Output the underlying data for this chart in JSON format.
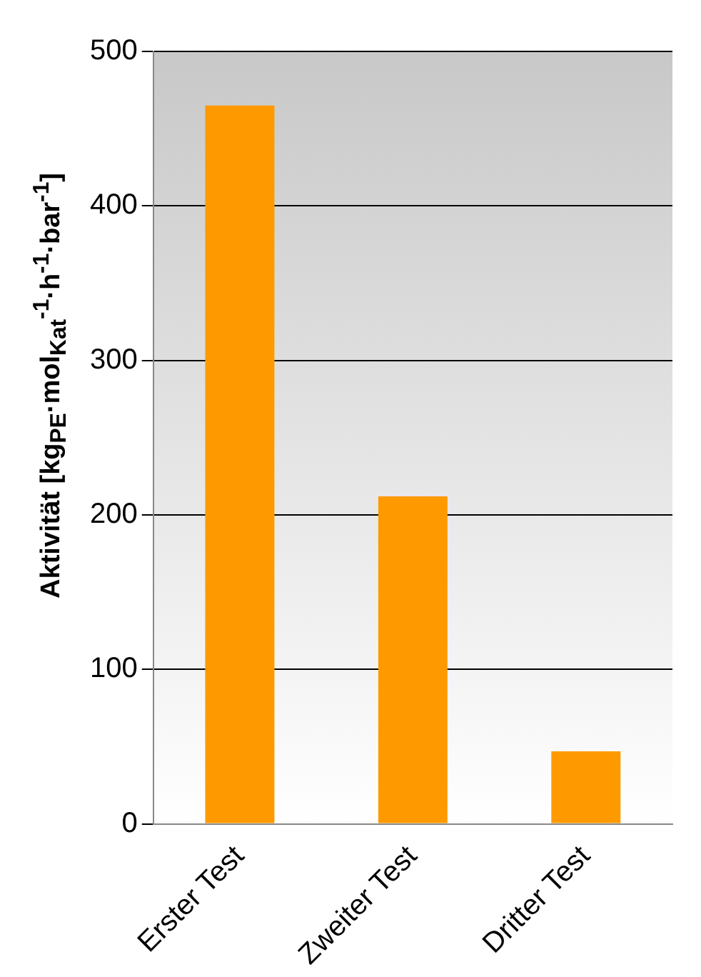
{
  "chart_data": {
    "type": "bar",
    "ylabel": "Aktivität [kg$_{PE}$·mol$_{Kat}$$^{-1}$·h$^{-1}$·bar$^{-1}$]",
    "categories": [
      "Erster Test",
      "Zweiter Test",
      "Dritter Test"
    ],
    "values": [
      465,
      212,
      47
    ],
    "color": "#ff9900",
    "ylim": [
      0,
      500
    ],
    "yticks": [
      0,
      100,
      200,
      300,
      400,
      500
    ],
    "grid": "y",
    "legend": false
  }
}
